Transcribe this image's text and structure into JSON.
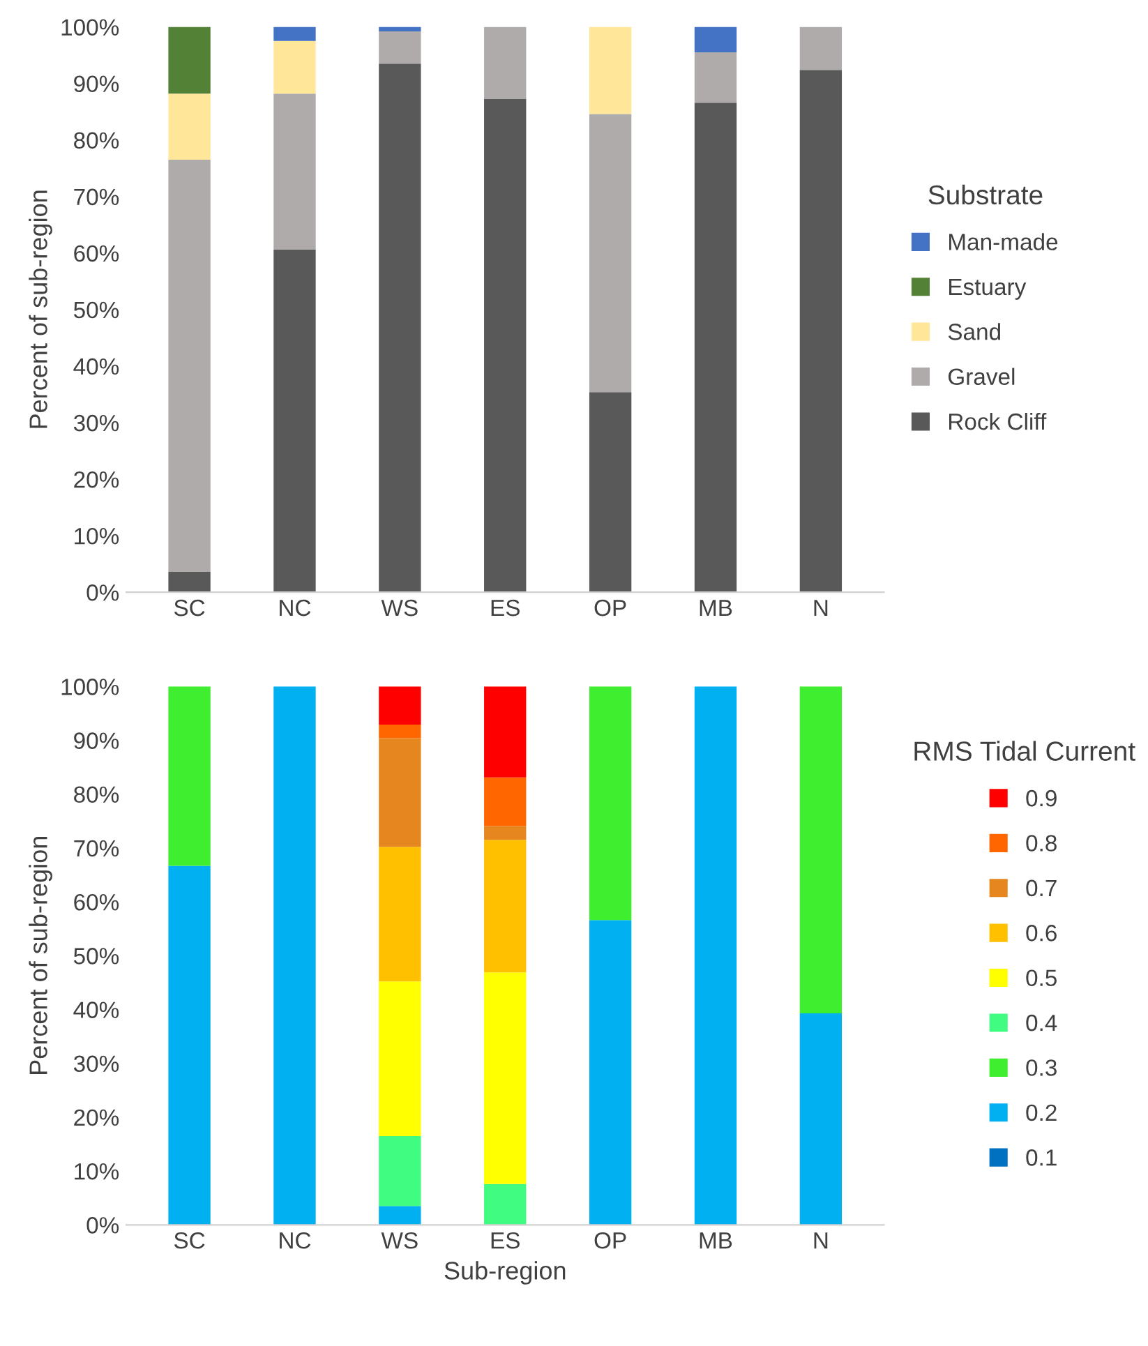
{
  "chart_data": [
    {
      "type": "bar",
      "stacked": true,
      "ylabel": "Percent of sub-region",
      "legend_title": "Substrate",
      "legend": "right",
      "grid": false,
      "categories": [
        "SC",
        "NC",
        "WS",
        "ES",
        "OP",
        "MB",
        "N"
      ],
      "ylim": [
        0,
        100
      ],
      "yticks": [
        {
          "value": 0,
          "label": "0%"
        },
        {
          "value": 10,
          "label": "10%"
        },
        {
          "value": 20,
          "label": "20%"
        },
        {
          "value": 30,
          "label": "30%"
        },
        {
          "value": 40,
          "label": "40%"
        },
        {
          "value": 50,
          "label": "50%"
        },
        {
          "value": 60,
          "label": "60%"
        },
        {
          "value": 70,
          "label": "70%"
        },
        {
          "value": 80,
          "label": "80%"
        },
        {
          "value": 90,
          "label": "90%"
        },
        {
          "value": 100,
          "label": "100%"
        }
      ],
      "series": [
        {
          "name": "Rock Cliff",
          "color": "#595959",
          "values": [
            3.6,
            60.6,
            93.5,
            87.3,
            35.4,
            86.6,
            92.4
          ]
        },
        {
          "name": "Gravel",
          "color": "#afabab",
          "values": [
            72.9,
            27.6,
            5.7,
            12.7,
            49.2,
            8.9,
            7.6
          ]
        },
        {
          "name": "Sand",
          "color": "#ffe699",
          "values": [
            11.7,
            9.3,
            0,
            0,
            15.4,
            0,
            0
          ]
        },
        {
          "name": "Estuary",
          "color": "#538135",
          "values": [
            11.8,
            0,
            0,
            0,
            0,
            0,
            0
          ]
        },
        {
          "name": "Man-made",
          "color": "#4472c4",
          "values": [
            0,
            2.5,
            0.8,
            0,
            0,
            4.5,
            0
          ]
        }
      ]
    },
    {
      "type": "bar",
      "stacked": true,
      "ylabel": "Percent of sub-region",
      "xlabel": "Sub-region",
      "legend_title": "RMS Tidal Current",
      "legend": "right",
      "grid": false,
      "categories": [
        "SC",
        "NC",
        "WS",
        "ES",
        "OP",
        "MB",
        "N"
      ],
      "ylim": [
        0,
        100
      ],
      "yticks": [
        {
          "value": 0,
          "label": "0%"
        },
        {
          "value": 10,
          "label": "10%"
        },
        {
          "value": 20,
          "label": "20%"
        },
        {
          "value": 30,
          "label": "30%"
        },
        {
          "value": 40,
          "label": "40%"
        },
        {
          "value": 50,
          "label": "50%"
        },
        {
          "value": 60,
          "label": "60%"
        },
        {
          "value": 70,
          "label": "70%"
        },
        {
          "value": 80,
          "label": "80%"
        },
        {
          "value": 90,
          "label": "90%"
        },
        {
          "value": 100,
          "label": "100%"
        }
      ],
      "series": [
        {
          "name": "0.1",
          "color": "#0070c0",
          "values": [
            0,
            0,
            0,
            0,
            0,
            0,
            0
          ]
        },
        {
          "name": "0.2",
          "color": "#00b0f0",
          "values": [
            66.7,
            100,
            3.5,
            0,
            56.6,
            100,
            39.3
          ]
        },
        {
          "name": "0.3",
          "color": "#40ee30",
          "values": [
            33.3,
            0,
            0,
            0,
            43.4,
            0,
            60.7
          ]
        },
        {
          "name": "0.4",
          "color": "#40fc80",
          "values": [
            0,
            0,
            13.0,
            7.6,
            0,
            0,
            0
          ]
        },
        {
          "name": "0.5",
          "color": "#ffff00",
          "values": [
            0,
            0,
            28.7,
            39.3,
            0,
            0,
            0
          ]
        },
        {
          "name": "0.6",
          "color": "#ffc000",
          "values": [
            0,
            0,
            25.0,
            24.6,
            0,
            0,
            0
          ]
        },
        {
          "name": "0.7",
          "color": "#e6861e",
          "values": [
            0,
            0,
            20.2,
            2.6,
            0,
            0,
            0
          ]
        },
        {
          "name": "0.8",
          "color": "#ff6600",
          "values": [
            0,
            0,
            2.5,
            9.0,
            0,
            0,
            0
          ]
        },
        {
          "name": "0.9",
          "color": "#ff0000",
          "values": [
            0,
            0,
            7.1,
            16.9,
            0,
            0,
            0
          ]
        }
      ]
    }
  ]
}
